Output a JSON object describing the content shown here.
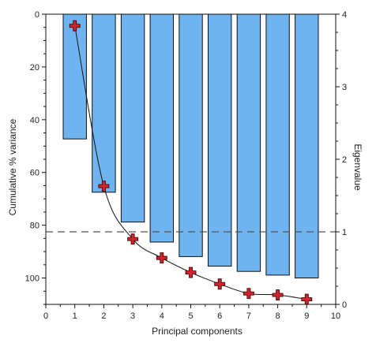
{
  "chart_data": {
    "type": "bar",
    "x": [
      1,
      2,
      3,
      4,
      5,
      6,
      7,
      8,
      9
    ],
    "xlabel": "Principal components",
    "xlim": [
      0,
      10
    ],
    "xticks": [
      "0",
      "1",
      "2",
      "3",
      "4",
      "5",
      "6",
      "7",
      "8",
      "9",
      "10"
    ],
    "left_axis": {
      "label": "Cumulative % variance",
      "ylim": [
        0,
        110
      ],
      "inverted": true,
      "ticks": [
        "0",
        "20",
        "40",
        "60",
        "80",
        "100"
      ]
    },
    "right_axis": {
      "label": "Eigenvalue",
      "ylim": [
        0,
        4
      ],
      "ticks": [
        "0",
        "1",
        "2",
        "3",
        "4"
      ]
    },
    "series": [
      {
        "kind": "bar",
        "axis": "left",
        "values": [
          47.3,
          67.5,
          78.8,
          86.4,
          91.9,
          95.5,
          97.5,
          98.9,
          100.0
        ],
        "color": "#6fb4f0"
      },
      {
        "kind": "line",
        "axis": "right",
        "marker": "plus",
        "values": [
          3.84,
          1.63,
          0.9,
          0.64,
          0.44,
          0.28,
          0.15,
          0.13,
          0.07
        ],
        "color": "#d6232a"
      }
    ],
    "reference_line": {
      "axis": "right",
      "value": 1,
      "style": "dashed"
    },
    "grid": false,
    "legend": "none"
  }
}
